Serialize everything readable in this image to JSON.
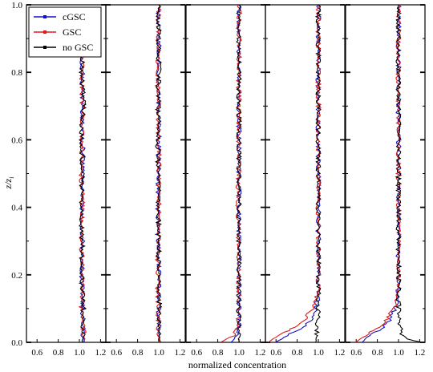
{
  "chart_data": {
    "type": "line",
    "xlabel": "normalized concentration",
    "ylabel_main": "z/z",
    "ylabel_sub": "i",
    "ylim": [
      0,
      1.0
    ],
    "y_ticks": [
      "0.0",
      "0.2",
      "0.4",
      "0.6",
      "0.8",
      "1.0"
    ],
    "xlim": [
      0.5,
      1.25
    ],
    "x_ticks": [
      "0.6",
      "0.8",
      "1.0",
      "1.2"
    ],
    "grid": false,
    "legend": {
      "placement": "top-left of first panel",
      "entries": [
        "cGSC",
        "GSC",
        "no GSC"
      ]
    },
    "series_colors": {
      "cGSC": "#1010c8",
      "GSC": "#e01818",
      "no GSC": "#000000"
    },
    "panels": [
      {
        "panel": 1,
        "series": [
          {
            "name": "cGSC",
            "points": [
              [
                1.04,
                0.0
              ],
              [
                1.03,
                0.1
              ],
              [
                1.02,
                0.2
              ],
              [
                1.03,
                0.3
              ],
              [
                1.02,
                0.4
              ],
              [
                1.04,
                0.5
              ],
              [
                1.03,
                0.6
              ],
              [
                1.02,
                0.7
              ],
              [
                1.03,
                0.8
              ],
              [
                1.02,
                0.85
              ]
            ]
          },
          {
            "name": "GSC",
            "points": [
              [
                1.05,
                0.0
              ],
              [
                1.02,
                0.1
              ],
              [
                1.03,
                0.2
              ],
              [
                1.02,
                0.3
              ],
              [
                1.03,
                0.4
              ],
              [
                1.02,
                0.5
              ],
              [
                1.03,
                0.6
              ],
              [
                1.03,
                0.7
              ],
              [
                1.02,
                0.8
              ],
              [
                1.03,
                0.85
              ]
            ]
          },
          {
            "name": "no GSC",
            "points": [
              [
                1.03,
                0.0
              ],
              [
                1.04,
                0.1
              ],
              [
                1.02,
                0.2
              ],
              [
                1.03,
                0.3
              ],
              [
                1.01,
                0.4
              ],
              [
                1.03,
                0.5
              ],
              [
                1.02,
                0.6
              ],
              [
                1.04,
                0.7
              ],
              [
                1.02,
                0.8
              ],
              [
                1.03,
                0.85
              ]
            ]
          }
        ]
      },
      {
        "panel": 2,
        "series": [
          {
            "name": "cGSC",
            "points": [
              [
                1.0,
                0.0
              ],
              [
                1.0,
                0.2
              ],
              [
                0.99,
                0.4
              ],
              [
                1.0,
                0.6
              ],
              [
                1.0,
                0.8
              ],
              [
                1.0,
                1.0
              ]
            ]
          },
          {
            "name": "GSC",
            "points": [
              [
                1.0,
                0.0
              ],
              [
                0.99,
                0.2
              ],
              [
                1.0,
                0.4
              ],
              [
                1.0,
                0.6
              ],
              [
                0.99,
                0.8
              ],
              [
                1.0,
                1.0
              ]
            ]
          },
          {
            "name": "no GSC",
            "points": [
              [
                1.01,
                0.0
              ],
              [
                1.0,
                0.2
              ],
              [
                1.0,
                0.4
              ],
              [
                0.99,
                0.6
              ],
              [
                1.0,
                0.8
              ],
              [
                1.0,
                1.0
              ]
            ]
          }
        ]
      },
      {
        "panel": 3,
        "series": [
          {
            "name": "cGSC",
            "points": [
              [
                0.92,
                0.0
              ],
              [
                0.98,
                0.02
              ],
              [
                1.0,
                0.05
              ],
              [
                1.0,
                0.2
              ],
              [
                1.0,
                0.4
              ],
              [
                1.0,
                0.6
              ],
              [
                1.0,
                0.8
              ],
              [
                1.0,
                1.0
              ]
            ]
          },
          {
            "name": "GSC",
            "points": [
              [
                0.82,
                0.0
              ],
              [
                0.95,
                0.02
              ],
              [
                1.0,
                0.05
              ],
              [
                1.0,
                0.2
              ],
              [
                0.99,
                0.4
              ],
              [
                1.0,
                0.6
              ],
              [
                1.0,
                0.8
              ],
              [
                1.0,
                1.0
              ]
            ]
          },
          {
            "name": "no GSC",
            "points": [
              [
                1.0,
                0.0
              ],
              [
                1.0,
                0.2
              ],
              [
                1.0,
                0.4
              ],
              [
                1.0,
                0.6
              ],
              [
                1.0,
                0.8
              ],
              [
                1.0,
                1.0
              ]
            ]
          }
        ]
      },
      {
        "panel": 4,
        "series": [
          {
            "name": "cGSC",
            "points": [
              [
                0.6,
                0.0
              ],
              [
                0.7,
                0.02
              ],
              [
                0.82,
                0.04
              ],
              [
                0.92,
                0.06
              ],
              [
                0.98,
                0.1
              ],
              [
                1.0,
                0.15
              ],
              [
                1.0,
                0.3
              ],
              [
                1.0,
                0.5
              ],
              [
                1.0,
                0.7
              ],
              [
                1.0,
                0.9
              ],
              [
                1.0,
                1.0
              ]
            ]
          },
          {
            "name": "GSC",
            "points": [
              [
                0.53,
                0.0
              ],
              [
                0.62,
                0.02
              ],
              [
                0.74,
                0.04
              ],
              [
                0.85,
                0.06
              ],
              [
                0.95,
                0.1
              ],
              [
                1.0,
                0.15
              ],
              [
                1.0,
                0.3
              ],
              [
                1.0,
                0.5
              ],
              [
                1.0,
                0.7
              ],
              [
                1.0,
                0.9
              ],
              [
                1.0,
                1.0
              ]
            ]
          },
          {
            "name": "no GSC",
            "points": [
              [
                0.98,
                0.0
              ],
              [
                0.99,
                0.05
              ],
              [
                1.0,
                0.1
              ],
              [
                1.0,
                0.3
              ],
              [
                1.0,
                0.5
              ],
              [
                1.0,
                0.7
              ],
              [
                1.0,
                0.9
              ],
              [
                1.0,
                1.0
              ]
            ]
          }
        ]
      },
      {
        "panel": 5,
        "series": [
          {
            "name": "cGSC",
            "points": [
              [
                0.65,
                0.0
              ],
              [
                0.72,
                0.02
              ],
              [
                0.84,
                0.04
              ],
              [
                0.93,
                0.07
              ],
              [
                0.98,
                0.11
              ],
              [
                1.0,
                0.16
              ],
              [
                1.0,
                0.3
              ],
              [
                1.0,
                0.5
              ],
              [
                1.0,
                0.7
              ],
              [
                1.0,
                0.9
              ],
              [
                1.0,
                1.0
              ]
            ]
          },
          {
            "name": "GSC",
            "points": [
              [
                0.6,
                0.0
              ],
              [
                0.68,
                0.02
              ],
              [
                0.8,
                0.04
              ],
              [
                0.9,
                0.07
              ],
              [
                0.97,
                0.11
              ],
              [
                1.0,
                0.16
              ],
              [
                1.0,
                0.3
              ],
              [
                1.0,
                0.5
              ],
              [
                1.0,
                0.7
              ],
              [
                1.0,
                0.9
              ],
              [
                1.0,
                1.0
              ]
            ]
          },
          {
            "name": "no GSC",
            "points": [
              [
                1.22,
                0.0
              ],
              [
                1.08,
                0.01
              ],
              [
                1.02,
                0.03
              ],
              [
                1.0,
                0.1
              ],
              [
                1.0,
                0.3
              ],
              [
                1.0,
                0.5
              ],
              [
                1.0,
                0.7
              ],
              [
                1.0,
                0.9
              ],
              [
                1.0,
                1.0
              ]
            ]
          }
        ]
      }
    ]
  }
}
